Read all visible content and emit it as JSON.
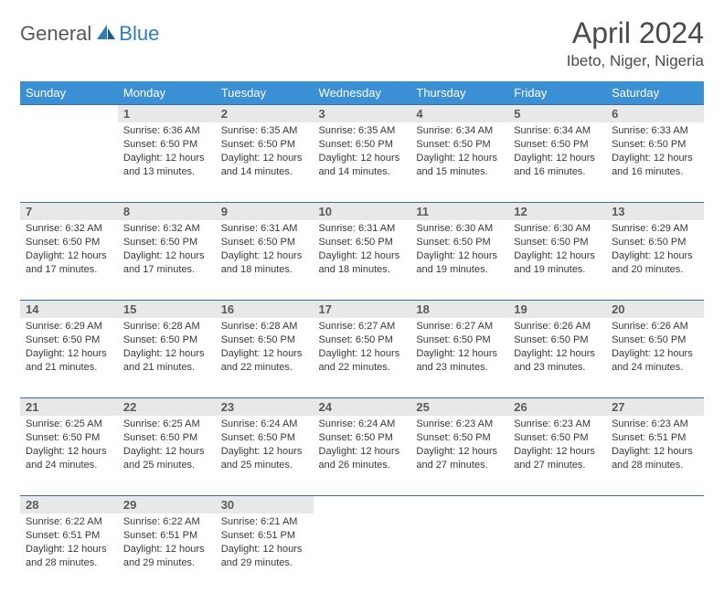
{
  "logo": {
    "part1": "General",
    "part2": "Blue"
  },
  "title": "April 2024",
  "location": "Ibeto, Niger, Nigeria",
  "colors": {
    "header_bg": "#3b8fd4",
    "daynum_bg": "#e8e8e8",
    "rule": "#3b6ea0",
    "logo_blue": "#2f7bbf",
    "logo_gray": "#585858"
  },
  "weekdays": [
    "Sunday",
    "Monday",
    "Tuesday",
    "Wednesday",
    "Thursday",
    "Friday",
    "Saturday"
  ],
  "weeks": [
    {
      "nums": [
        "",
        "1",
        "2",
        "3",
        "4",
        "5",
        "6"
      ],
      "cells": [
        {
          "empty": true
        },
        {
          "sunrise": "Sunrise: 6:36 AM",
          "sunset": "Sunset: 6:50 PM",
          "dl1": "Daylight: 12 hours",
          "dl2": "and 13 minutes."
        },
        {
          "sunrise": "Sunrise: 6:35 AM",
          "sunset": "Sunset: 6:50 PM",
          "dl1": "Daylight: 12 hours",
          "dl2": "and 14 minutes."
        },
        {
          "sunrise": "Sunrise: 6:35 AM",
          "sunset": "Sunset: 6:50 PM",
          "dl1": "Daylight: 12 hours",
          "dl2": "and 14 minutes."
        },
        {
          "sunrise": "Sunrise: 6:34 AM",
          "sunset": "Sunset: 6:50 PM",
          "dl1": "Daylight: 12 hours",
          "dl2": "and 15 minutes."
        },
        {
          "sunrise": "Sunrise: 6:34 AM",
          "sunset": "Sunset: 6:50 PM",
          "dl1": "Daylight: 12 hours",
          "dl2": "and 16 minutes."
        },
        {
          "sunrise": "Sunrise: 6:33 AM",
          "sunset": "Sunset: 6:50 PM",
          "dl1": "Daylight: 12 hours",
          "dl2": "and 16 minutes."
        }
      ]
    },
    {
      "nums": [
        "7",
        "8",
        "9",
        "10",
        "11",
        "12",
        "13"
      ],
      "cells": [
        {
          "sunrise": "Sunrise: 6:32 AM",
          "sunset": "Sunset: 6:50 PM",
          "dl1": "Daylight: 12 hours",
          "dl2": "and 17 minutes."
        },
        {
          "sunrise": "Sunrise: 6:32 AM",
          "sunset": "Sunset: 6:50 PM",
          "dl1": "Daylight: 12 hours",
          "dl2": "and 17 minutes."
        },
        {
          "sunrise": "Sunrise: 6:31 AM",
          "sunset": "Sunset: 6:50 PM",
          "dl1": "Daylight: 12 hours",
          "dl2": "and 18 minutes."
        },
        {
          "sunrise": "Sunrise: 6:31 AM",
          "sunset": "Sunset: 6:50 PM",
          "dl1": "Daylight: 12 hours",
          "dl2": "and 18 minutes."
        },
        {
          "sunrise": "Sunrise: 6:30 AM",
          "sunset": "Sunset: 6:50 PM",
          "dl1": "Daylight: 12 hours",
          "dl2": "and 19 minutes."
        },
        {
          "sunrise": "Sunrise: 6:30 AM",
          "sunset": "Sunset: 6:50 PM",
          "dl1": "Daylight: 12 hours",
          "dl2": "and 19 minutes."
        },
        {
          "sunrise": "Sunrise: 6:29 AM",
          "sunset": "Sunset: 6:50 PM",
          "dl1": "Daylight: 12 hours",
          "dl2": "and 20 minutes."
        }
      ]
    },
    {
      "nums": [
        "14",
        "15",
        "16",
        "17",
        "18",
        "19",
        "20"
      ],
      "cells": [
        {
          "sunrise": "Sunrise: 6:29 AM",
          "sunset": "Sunset: 6:50 PM",
          "dl1": "Daylight: 12 hours",
          "dl2": "and 21 minutes."
        },
        {
          "sunrise": "Sunrise: 6:28 AM",
          "sunset": "Sunset: 6:50 PM",
          "dl1": "Daylight: 12 hours",
          "dl2": "and 21 minutes."
        },
        {
          "sunrise": "Sunrise: 6:28 AM",
          "sunset": "Sunset: 6:50 PM",
          "dl1": "Daylight: 12 hours",
          "dl2": "and 22 minutes."
        },
        {
          "sunrise": "Sunrise: 6:27 AM",
          "sunset": "Sunset: 6:50 PM",
          "dl1": "Daylight: 12 hours",
          "dl2": "and 22 minutes."
        },
        {
          "sunrise": "Sunrise: 6:27 AM",
          "sunset": "Sunset: 6:50 PM",
          "dl1": "Daylight: 12 hours",
          "dl2": "and 23 minutes."
        },
        {
          "sunrise": "Sunrise: 6:26 AM",
          "sunset": "Sunset: 6:50 PM",
          "dl1": "Daylight: 12 hours",
          "dl2": "and 23 minutes."
        },
        {
          "sunrise": "Sunrise: 6:26 AM",
          "sunset": "Sunset: 6:50 PM",
          "dl1": "Daylight: 12 hours",
          "dl2": "and 24 minutes."
        }
      ]
    },
    {
      "nums": [
        "21",
        "22",
        "23",
        "24",
        "25",
        "26",
        "27"
      ],
      "cells": [
        {
          "sunrise": "Sunrise: 6:25 AM",
          "sunset": "Sunset: 6:50 PM",
          "dl1": "Daylight: 12 hours",
          "dl2": "and 24 minutes."
        },
        {
          "sunrise": "Sunrise: 6:25 AM",
          "sunset": "Sunset: 6:50 PM",
          "dl1": "Daylight: 12 hours",
          "dl2": "and 25 minutes."
        },
        {
          "sunrise": "Sunrise: 6:24 AM",
          "sunset": "Sunset: 6:50 PM",
          "dl1": "Daylight: 12 hours",
          "dl2": "and 25 minutes."
        },
        {
          "sunrise": "Sunrise: 6:24 AM",
          "sunset": "Sunset: 6:50 PM",
          "dl1": "Daylight: 12 hours",
          "dl2": "and 26 minutes."
        },
        {
          "sunrise": "Sunrise: 6:23 AM",
          "sunset": "Sunset: 6:50 PM",
          "dl1": "Daylight: 12 hours",
          "dl2": "and 27 minutes."
        },
        {
          "sunrise": "Sunrise: 6:23 AM",
          "sunset": "Sunset: 6:50 PM",
          "dl1": "Daylight: 12 hours",
          "dl2": "and 27 minutes."
        },
        {
          "sunrise": "Sunrise: 6:23 AM",
          "sunset": "Sunset: 6:51 PM",
          "dl1": "Daylight: 12 hours",
          "dl2": "and 28 minutes."
        }
      ]
    },
    {
      "nums": [
        "28",
        "29",
        "30",
        "",
        "",
        "",
        ""
      ],
      "cells": [
        {
          "sunrise": "Sunrise: 6:22 AM",
          "sunset": "Sunset: 6:51 PM",
          "dl1": "Daylight: 12 hours",
          "dl2": "and 28 minutes."
        },
        {
          "sunrise": "Sunrise: 6:22 AM",
          "sunset": "Sunset: 6:51 PM",
          "dl1": "Daylight: 12 hours",
          "dl2": "and 29 minutes."
        },
        {
          "sunrise": "Sunrise: 6:21 AM",
          "sunset": "Sunset: 6:51 PM",
          "dl1": "Daylight: 12 hours",
          "dl2": "and 29 minutes."
        },
        {
          "empty": true
        },
        {
          "empty": true
        },
        {
          "empty": true
        },
        {
          "empty": true
        }
      ]
    }
  ]
}
